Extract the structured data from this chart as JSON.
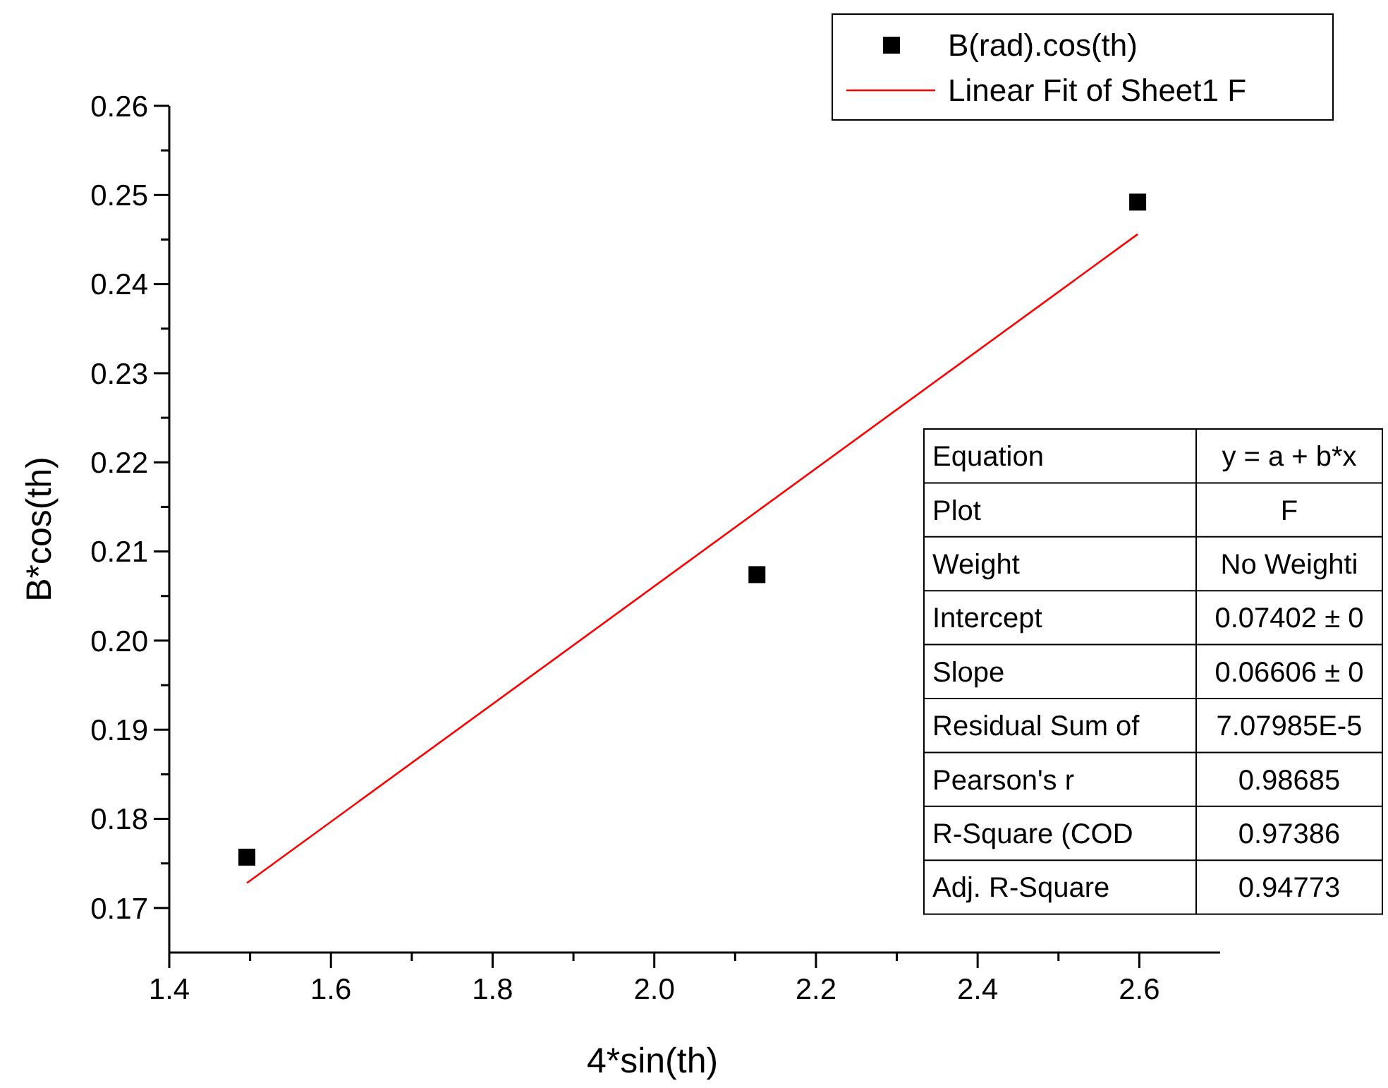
{
  "chart_data": {
    "type": "scatter",
    "xlabel": "4*sin(th)",
    "ylabel": "B*cos(th)",
    "xlim": [
      1.4,
      2.7
    ],
    "ylim": [
      0.165,
      0.26
    ],
    "xticks": [
      1.4,
      {
        "value": 1.5,
        "label": null
      },
      1.6,
      {
        "value": 1.7,
        "label": null
      },
      1.8,
      {
        "value": 1.9,
        "label": null
      },
      {
        "value": 2.0,
        "label": "2.0"
      },
      {
        "value": 2.1,
        "label": null
      },
      2.2,
      {
        "value": 2.3,
        "label": null
      },
      2.4,
      {
        "value": 2.5,
        "label": null
      },
      2.6
    ],
    "yticks": [
      {
        "value": 0.17,
        "label": "0.17"
      },
      {
        "value": 0.175,
        "label": null
      },
      0.18,
      {
        "value": 0.185,
        "label": null
      },
      0.19,
      {
        "value": 0.195,
        "label": null
      },
      {
        "value": 0.2,
        "label": "0.20"
      },
      {
        "value": 0.205,
        "label": null
      },
      0.21,
      {
        "value": 0.215,
        "label": null
      },
      0.22,
      {
        "value": 0.225,
        "label": null
      },
      0.23,
      {
        "value": 0.235,
        "label": null
      },
      0.24,
      {
        "value": 0.245,
        "label": null
      },
      0.25,
      {
        "value": 0.255,
        "label": null
      },
      0.26
    ],
    "grid": false,
    "legend": "top right",
    "series": [
      {
        "name": "B(rad).cos(th)",
        "color": "#000000",
        "marker": "square",
        "x": [
          1.496,
          2.127,
          2.598
        ],
        "values": [
          0.1757,
          0.2074,
          0.2492
        ]
      },
      {
        "name": "Linear Fit of Sheet1 F",
        "type": "line",
        "color": "#ff0000",
        "marker": "none",
        "x": [
          1.496,
          2.598
        ],
        "values": [
          0.1728,
          0.2456
        ]
      }
    ],
    "annotations": [
      "Equation",
      "y = a + b*x",
      "Plot",
      "F",
      "Weight",
      "No Weighti",
      "Intercept",
      "0.07402 ± 0",
      "Slope",
      "0.06606 ± 0",
      "Residual Sum of",
      "7.07985E-5",
      "Pearson's r",
      "0.98685",
      "R-Square (COD",
      "0.97386",
      "Adj. R-Square",
      "0.94773"
    ]
  }
}
